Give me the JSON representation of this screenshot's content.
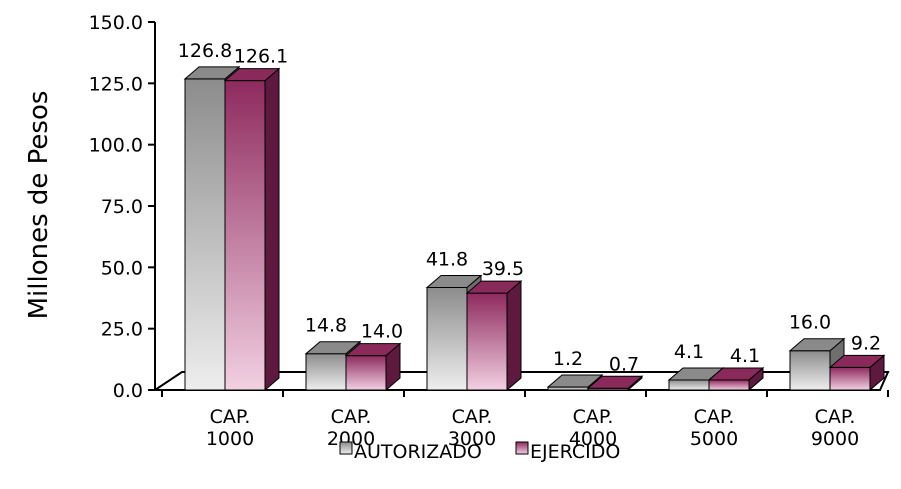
{
  "chart_data": {
    "type": "bar",
    "style": "3d-clustered-column",
    "title": "",
    "xlabel": "",
    "ylabel": "Millones de Pesos",
    "ylim": [
      0,
      150
    ],
    "y_ticks": [
      "0.0",
      "25.0",
      "50.0",
      "75.0",
      "100.0",
      "125.0",
      "150.0"
    ],
    "categories": [
      "CAP. 1000",
      "CAP. 2000",
      "CAP. 3000",
      "CAP. 4000",
      "CAP. 5000",
      "CAP. 9000"
    ],
    "category_lines": [
      [
        "CAP.",
        "1000"
      ],
      [
        "CAP.",
        "2000"
      ],
      [
        "CAP.",
        "3000"
      ],
      [
        "CAP.",
        "4000"
      ],
      [
        "CAP.",
        "5000"
      ],
      [
        "CAP.",
        "9000"
      ]
    ],
    "series": [
      {
        "name": "AUTORIZADO",
        "values": [
          126.8,
          14.8,
          41.8,
          1.2,
          4.1,
          16.0
        ],
        "labels": [
          "126.8",
          "14.8",
          "41.8",
          "1.2",
          "4.1",
          "16.0"
        ],
        "color_top": "#8c8c8c",
        "color_bottom": "#eeeeee",
        "color_side": "#6e6e6e",
        "color_cap": "#8a8a8a"
      },
      {
        "name": "EJERCIDO",
        "values": [
          126.1,
          14.0,
          39.5,
          0.7,
          4.1,
          9.2
        ],
        "labels": [
          "126.1",
          "14.0",
          "39.5",
          "0.7",
          "4.1",
          "9.2"
        ],
        "color_top": "#8e2a5e",
        "color_bottom": "#f2d0e2",
        "color_side": "#5e1a3e",
        "color_cap": "#8a2a5a"
      }
    ],
    "grid": false,
    "legend_position": "bottom"
  }
}
